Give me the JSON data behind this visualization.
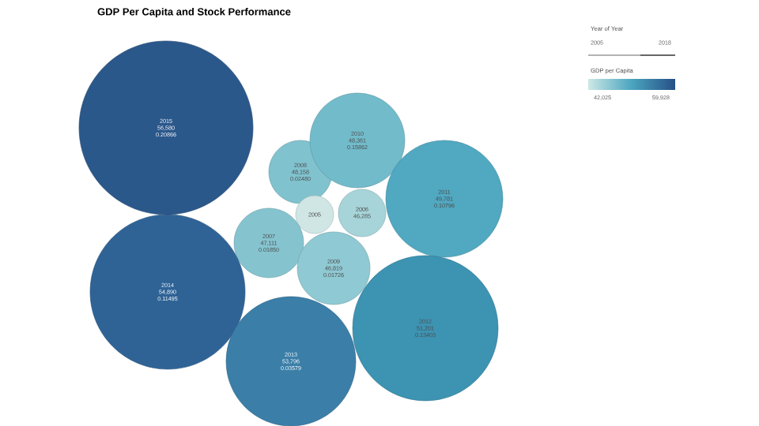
{
  "chart_data": {
    "type": "other",
    "title": "GDP Per Capita and Stock Performance",
    "categories": [
      "2015",
      "2008",
      "2010",
      "2011",
      "2005",
      "2006",
      "2007",
      "2009",
      "2014",
      "2013",
      "2012"
    ],
    "series": [
      {
        "values": [
          56580,
          48158,
          48361,
          49781,
          null,
          46285,
          47111,
          46819,
          54890,
          53796,
          51201
        ],
        "colors": [
          "#2c5a8c",
          "#7bbfcc",
          "#6cb8c8",
          "#4aa5bf",
          "#cfe6e4",
          "#9fd0d6",
          "#7cc0cc",
          "#86c5d0",
          "#2f6295",
          "#3b7fa8",
          "#3a8fb0"
        ],
        "value_labels": [
          "56,580",
          "48,158",
          "48,361",
          "49,781",
          null,
          "46,285",
          "47,111",
          "46,819",
          "54,890",
          "53,796",
          "51,201"
        ]
      },
      {
        "values": [
          0.20866,
          0.0248,
          0.15862,
          0.10796,
          null,
          null,
          0.0185,
          0.01726,
          0.11495,
          0.03579,
          0.13403
        ],
        "value_labels": [
          "0.20866",
          "0.02480",
          "0.15862",
          "0.10796",
          null,
          null,
          "0.01850",
          "0.01726",
          "0.11495",
          "0.03579",
          "0.13403"
        ]
      }
    ],
    "clabel": "GDP per Capita",
    "annotations": [
      "Year of Year",
      "2005",
      "2018",
      "42,025",
      "59,928"
    ]
  }
}
